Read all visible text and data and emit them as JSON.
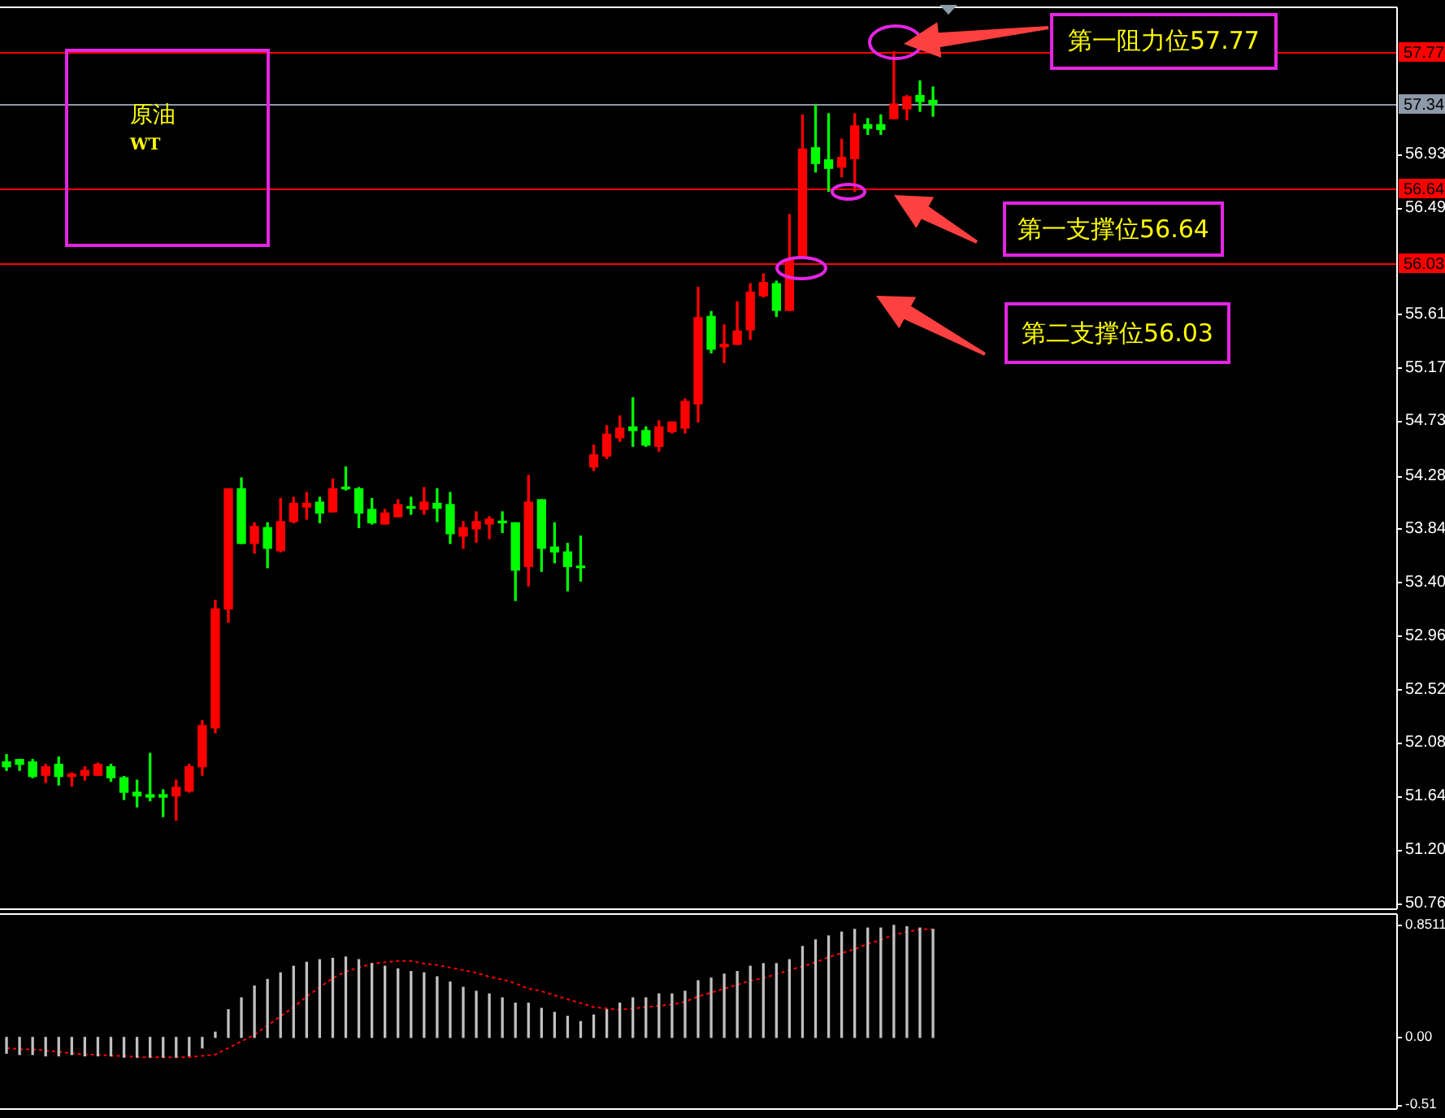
{
  "chart_data": [
    {
      "type": "candlestick",
      "title": "原油",
      "subtitle": "WT",
      "categories": [
        null,
        null,
        null,
        null,
        null,
        null,
        null,
        null,
        null,
        null,
        null,
        null,
        null,
        null,
        null,
        null,
        null,
        null,
        null,
        null,
        null,
        null,
        null,
        null,
        null,
        null,
        null,
        null,
        null,
        null,
        null,
        null,
        null,
        null,
        null,
        null,
        null,
        null,
        null,
        null,
        null,
        null,
        null,
        null,
        null,
        null,
        null,
        null,
        null,
        null,
        null,
        null,
        null,
        null,
        null,
        null,
        null,
        null,
        null,
        null,
        null,
        null,
        null,
        null,
        null,
        null,
        null,
        null,
        null,
        null,
        null,
        null,
        null,
        null,
        null,
        null,
        null,
        null,
        null,
        null,
        null,
        null,
        null,
        null,
        null,
        null,
        null,
        null,
        null,
        null,
        null,
        null,
        null,
        null,
        null,
        null,
        null,
        null,
        null,
        null,
        null,
        null,
        null,
        null,
        null,
        null,
        null
      ],
      "ohlc": [
        [
          51.92,
          51.98,
          51.85,
          51.88
        ],
        [
          51.94,
          51.94,
          51.85,
          51.9
        ],
        [
          51.92,
          51.94,
          51.79,
          51.8
        ],
        [
          51.81,
          51.9,
          51.75,
          51.88
        ],
        [
          51.9,
          51.96,
          51.73,
          51.8
        ],
        [
          51.8,
          51.83,
          51.72,
          51.82
        ],
        [
          51.81,
          51.88,
          51.77,
          51.85
        ],
        [
          51.81,
          51.91,
          51.81,
          51.9
        ],
        [
          51.88,
          51.9,
          51.76,
          51.79
        ],
        [
          51.79,
          51.8,
          51.61,
          51.67
        ],
        [
          51.67,
          51.77,
          51.55,
          51.64
        ],
        [
          51.65,
          51.99,
          51.6,
          51.63
        ],
        [
          51.65,
          51.69,
          51.47,
          51.63
        ],
        [
          51.64,
          51.77,
          51.44,
          51.71
        ],
        [
          51.68,
          51.9,
          51.67,
          51.88
        ],
        [
          51.88,
          52.26,
          51.81,
          52.22
        ],
        [
          52.2,
          53.25,
          52.16,
          53.18
        ],
        [
          53.18,
          54.17,
          53.07,
          54.17
        ],
        [
          54.17,
          54.26,
          53.72,
          53.72
        ],
        [
          53.72,
          53.89,
          53.64,
          53.86
        ],
        [
          53.85,
          53.89,
          53.52,
          53.68
        ],
        [
          53.66,
          54.09,
          53.65,
          53.9
        ],
        [
          53.9,
          54.1,
          53.89,
          54.05
        ],
        [
          54.02,
          54.14,
          53.92,
          54.05
        ],
        [
          54.06,
          54.1,
          53.89,
          53.97
        ],
        [
          53.98,
          54.25,
          53.98,
          54.17
        ],
        [
          54.18,
          54.35,
          54.16,
          54.17
        ],
        [
          54.17,
          54.18,
          53.85,
          53.97
        ],
        [
          54.0,
          54.09,
          53.88,
          53.89
        ],
        [
          53.88,
          54.0,
          53.88,
          53.97
        ],
        [
          53.94,
          54.08,
          53.94,
          54.04
        ],
        [
          54.02,
          54.1,
          53.96,
          54.01
        ],
        [
          54.0,
          54.18,
          53.96,
          54.06
        ],
        [
          54.05,
          54.17,
          53.9,
          54.01
        ],
        [
          54.04,
          54.14,
          53.72,
          53.8
        ],
        [
          53.78,
          53.9,
          53.68,
          53.85
        ],
        [
          53.84,
          53.98,
          53.73,
          53.9
        ],
        [
          53.88,
          53.94,
          53.76,
          53.92
        ],
        [
          53.9,
          53.98,
          53.81,
          53.89
        ],
        [
          53.89,
          53.89,
          53.25,
          53.5
        ],
        [
          53.53,
          54.28,
          53.37,
          54.06
        ],
        [
          54.08,
          54.08,
          53.49,
          53.68
        ],
        [
          53.69,
          53.89,
          53.56,
          53.65
        ],
        [
          53.65,
          53.72,
          53.33,
          53.53
        ],
        [
          53.53,
          53.78,
          53.41,
          53.52
        ],
        [
          54.35,
          54.53,
          54.32,
          54.45
        ],
        [
          54.44,
          54.69,
          54.42,
          54.62
        ],
        [
          54.59,
          54.77,
          54.56,
          54.67
        ],
        [
          54.68,
          54.92,
          54.52,
          54.65
        ],
        [
          54.65,
          54.68,
          54.52,
          54.53
        ],
        [
          54.52,
          54.73,
          54.48,
          54.68
        ],
        [
          54.64,
          54.72,
          54.63,
          54.72
        ],
        [
          54.67,
          54.91,
          54.63,
          54.89
        ],
        [
          54.87,
          55.83,
          54.72,
          55.58
        ],
        [
          55.59,
          55.63,
          55.29,
          55.32
        ],
        [
          55.34,
          55.52,
          55.21,
          55.36
        ],
        [
          55.36,
          55.71,
          55.36,
          55.47
        ],
        [
          55.48,
          55.86,
          55.4,
          55.79
        ],
        [
          55.76,
          55.94,
          55.75,
          55.87
        ],
        [
          55.86,
          55.88,
          55.59,
          55.64
        ],
        [
          55.64,
          56.43,
          55.64,
          56.05
        ],
        [
          56.07,
          57.25,
          56.07,
          56.97
        ],
        [
          56.98,
          57.33,
          56.78,
          56.85
        ],
        [
          56.88,
          57.26,
          56.62,
          56.81
        ],
        [
          56.82,
          57.05,
          56.74,
          56.9
        ],
        [
          56.89,
          57.26,
          56.62,
          57.16
        ],
        [
          57.17,
          57.22,
          57.09,
          57.14
        ],
        [
          57.17,
          57.25,
          57.09,
          57.13
        ],
        [
          57.22,
          57.77,
          57.22,
          57.34
        ],
        [
          57.3,
          57.41,
          57.21,
          57.4
        ],
        [
          57.41,
          57.53,
          57.28,
          57.36
        ],
        [
          57.37,
          57.48,
          57.24,
          57.34
        ],
        null,
        null,
        null,
        null,
        null,
        null,
        null,
        null,
        null,
        null,
        null,
        null,
        null,
        null,
        null,
        null,
        null,
        null,
        null,
        null,
        null,
        null,
        null,
        null,
        null,
        null,
        null,
        null,
        null,
        null,
        null,
        null,
        null,
        null,
        null
      ],
      "colors": [
        "#00ff00",
        "#00ff00",
        "#00ff00",
        "#ff0000",
        "#00ff00",
        "#ff0000",
        "#ff0000",
        "#ff0000",
        "#00ff00",
        "#00ff00",
        "#00ff00",
        "#00ff00",
        "#00ff00",
        "#ff0000",
        "#ff0000",
        "#ff0000",
        "#ff0000",
        "#ff0000",
        "#00ff00",
        "#ff0000",
        "#00ff00",
        "#ff0000",
        "#ff0000",
        "#ff0000",
        "#00ff00",
        "#ff0000",
        "#00ff00",
        "#00ff00",
        "#00ff00",
        "#ff0000",
        "#ff0000",
        "#00ff00",
        "#ff0000",
        "#00ff00",
        "#00ff00",
        "#ff0000",
        "#ff0000",
        "#ff0000",
        "#00ff00",
        "#00ff00",
        "#ff0000",
        "#00ff00",
        "#00ff00",
        "#00ff00",
        "#00ff00",
        "#ff0000",
        "#ff0000",
        "#ff0000",
        "#00ff00",
        "#00ff00",
        "#ff0000",
        "#ff0000",
        "#ff0000",
        "#ff0000",
        "#00ff00",
        "#ff0000",
        "#ff0000",
        "#ff0000",
        "#ff0000",
        "#00ff00",
        "#ff0000",
        "#ff0000",
        "#00ff00",
        "#00ff00",
        "#ff0000",
        "#ff0000",
        "#00ff00",
        "#00ff00",
        "#ff0000",
        "#ff0000",
        "#00ff00",
        "#00ff00",
        null,
        null,
        null,
        null,
        null,
        null,
        null,
        null,
        null,
        null,
        null,
        null,
        null,
        null,
        null,
        null,
        null,
        null,
        null,
        null,
        null,
        null,
        null,
        null,
        null,
        null,
        null,
        null,
        null,
        null,
        null,
        null,
        null,
        null,
        null
      ],
      "ylim": [
        50.7,
        58.13
      ],
      "yticks": [
        50.76,
        {
          "value": 51.2,
          "label": "51.20"
        },
        51.64,
        52.08,
        52.52,
        52.96,
        {
          "value": 53.4,
          "label": "53.40"
        },
        53.84,
        54.28,
        54.73,
        55.17,
        55.61,
        56.49,
        56.93
      ],
      "tick_labels": "y",
      "ref_lines": [
        {
          "axis": "y",
          "value": 57.77,
          "label": "57.77",
          "color": "#ff0000"
        },
        {
          "axis": "y",
          "value": 57.34,
          "label": "57.34",
          "color": "#8c9aaa"
        },
        {
          "axis": "y",
          "value": 56.64,
          "label": "56.64",
          "color": "#ff0000"
        },
        {
          "axis": "y",
          "value": 56.03,
          "label": "56.03",
          "color": "#ff0000"
        }
      ],
      "annotations": [
        "第一阻力位57.77",
        "第一支撑位56.64",
        "第二支撑位56.03"
      ]
    },
    {
      "type": "bar",
      "categories": [
        null,
        null,
        null,
        null,
        null,
        null,
        null,
        null,
        null,
        null,
        null,
        null,
        null,
        null,
        null,
        null,
        null,
        null,
        null,
        null,
        null,
        null,
        null,
        null,
        null,
        null,
        null,
        null,
        null,
        null,
        null,
        null,
        null,
        null,
        null,
        null,
        null,
        null,
        null,
        null,
        null,
        null,
        null,
        null,
        null,
        null,
        null,
        null,
        null,
        null,
        null,
        null,
        null,
        null,
        null,
        null,
        null,
        null,
        null,
        null,
        null,
        null,
        null,
        null,
        null,
        null,
        null,
        null,
        null,
        null,
        null,
        null,
        null,
        null,
        null,
        null,
        null,
        null,
        null,
        null,
        null,
        null,
        null,
        null,
        null,
        null,
        null,
        null,
        null,
        null,
        null,
        null,
        null,
        null,
        null,
        null,
        null,
        null,
        null,
        null,
        null,
        null,
        null,
        null,
        null,
        null,
        null
      ],
      "series": [
        {
          "type": "bar",
          "color": "#c0c0c0",
          "values": [
            -0.12,
            -0.13,
            -0.13,
            -0.14,
            -0.14,
            -0.13,
            -0.14,
            -0.14,
            -0.14,
            -0.15,
            -0.15,
            -0.15,
            -0.15,
            -0.15,
            -0.14,
            -0.08,
            0.04,
            0.21,
            0.3,
            0.39,
            0.44,
            0.49,
            0.54,
            0.57,
            0.59,
            0.6,
            0.61,
            0.59,
            0.56,
            0.54,
            0.52,
            0.5,
            0.49,
            0.46,
            0.42,
            0.38,
            0.35,
            0.33,
            0.3,
            0.26,
            0.26,
            0.22,
            0.19,
            0.16,
            0.12,
            0.17,
            0.21,
            0.26,
            0.3,
            0.3,
            0.33,
            0.33,
            0.35,
            0.43,
            0.45,
            0.48,
            0.5,
            0.54,
            0.56,
            0.56,
            0.59,
            0.69,
            0.74,
            0.77,
            0.8,
            0.82,
            0.83,
            0.83,
            0.85,
            0.84,
            0.83,
            0.82,
            null,
            null,
            null,
            null,
            null,
            null,
            null,
            null,
            null,
            null,
            null,
            null,
            null,
            null,
            null,
            null,
            null,
            null,
            null,
            null,
            null,
            null,
            null,
            null,
            null,
            null,
            null,
            null,
            null,
            null,
            null,
            null,
            null,
            null,
            null
          ]
        },
        {
          "type": "line",
          "color": "#ff0000",
          "line_style": "dotted",
          "values": [
            -0.08,
            -0.09,
            -0.09,
            -0.1,
            -0.11,
            -0.12,
            -0.13,
            -0.13,
            -0.14,
            -0.14,
            -0.15,
            -0.15,
            -0.15,
            -0.15,
            -0.15,
            -0.14,
            -0.13,
            -0.08,
            -0.03,
            0.02,
            0.09,
            0.16,
            0.23,
            0.31,
            0.38,
            0.45,
            0.5,
            0.53,
            0.56,
            0.57,
            0.58,
            0.58,
            0.56,
            0.55,
            0.53,
            0.51,
            0.49,
            0.46,
            0.44,
            0.41,
            0.37,
            0.35,
            0.32,
            0.29,
            0.26,
            0.23,
            0.22,
            0.21,
            0.22,
            0.23,
            0.24,
            0.25,
            0.27,
            0.31,
            0.34,
            0.37,
            0.4,
            0.43,
            0.45,
            0.48,
            0.51,
            0.54,
            0.57,
            0.61,
            0.64,
            0.67,
            0.71,
            0.74,
            0.78,
            0.8,
            0.82,
            0.82,
            null,
            null,
            null,
            null,
            null,
            null,
            null,
            null,
            null,
            null,
            null,
            null,
            null,
            null,
            null,
            null,
            null,
            null,
            null,
            null,
            null,
            null,
            null,
            null,
            null,
            null,
            null,
            null,
            null,
            null,
            null,
            null,
            null,
            null,
            null
          ]
        }
      ],
      "ylim": [
        -0.55,
        0.93
      ],
      "yticks": [
        0.8511,
        {
          "value": 0,
          "label": "0.00"
        },
        -0.51
      ],
      "tick_labels": "y"
    }
  ]
}
